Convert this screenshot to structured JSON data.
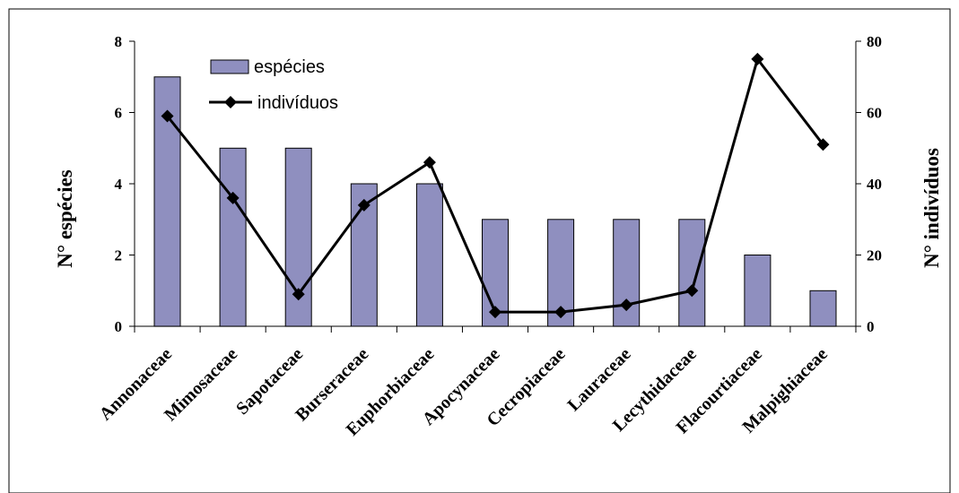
{
  "chart_data": {
    "type": "bar",
    "categories": [
      "Annonaceae",
      "Mimosaceae",
      "Sapotaceae",
      "Burseraceae",
      "Euphorbiaceae",
      "Apocynaceae",
      "Cecropiaceae",
      "Lauraceae",
      "Lecythidaceae",
      "Flacourtiaceae",
      "Malpighiaceae"
    ],
    "series": [
      {
        "name": "espécies",
        "type": "bar",
        "axis": "left",
        "values": [
          7,
          5,
          5,
          4,
          4,
          3,
          3,
          3,
          3,
          2,
          1
        ],
        "color": "#8f8fbf"
      },
      {
        "name": "indivíduos",
        "type": "line",
        "axis": "right",
        "values": [
          59,
          36,
          9,
          34,
          46,
          4,
          4,
          6,
          10,
          75,
          51
        ],
        "color": "#000000",
        "marker": "diamond"
      }
    ],
    "ylabel": "N° espécies",
    "y2label": "N° indivíduos",
    "ylim": [
      0,
      8
    ],
    "y2lim": [
      0,
      80
    ],
    "yticks": [
      "0",
      "2",
      "4",
      "6",
      "8"
    ],
    "y2ticks": [
      "0",
      "20",
      "40",
      "60",
      "80"
    ],
    "legend_position": "top-left",
    "grid": false
  }
}
